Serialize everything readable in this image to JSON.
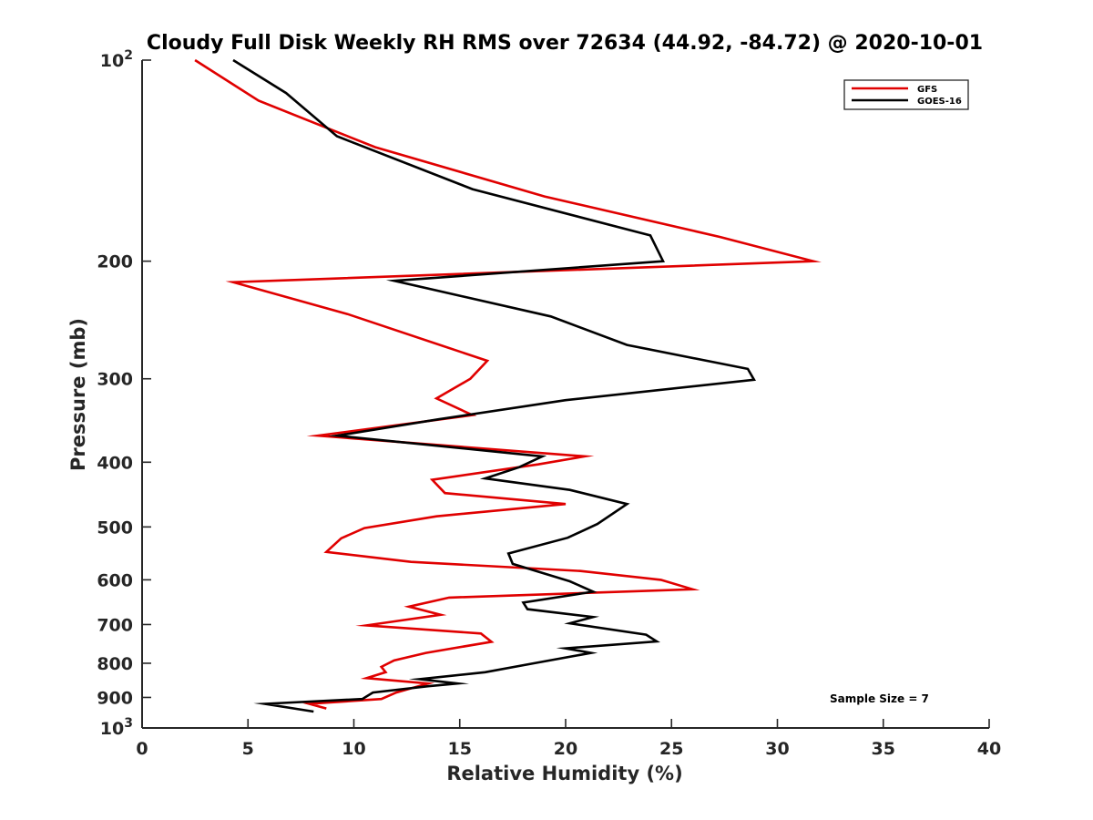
{
  "chart_data": {
    "type": "line",
    "title": "Cloudy Full Disk Weekly RH RMS over 72634 (44.92, -84.72) @ 2020-10-01",
    "xlabel": "Relative Humidity (%)",
    "ylabel": "Pressure (mb)",
    "xlim": [
      0,
      40
    ],
    "ylim": [
      100,
      1000
    ],
    "y_scale": "log",
    "y_reversed": true,
    "x_ticks": [
      "0",
      "5",
      "10",
      "15",
      "20",
      "25",
      "30",
      "35",
      "40"
    ],
    "y_ticks": [
      {
        "value": 100,
        "base": "10",
        "exp": "2",
        "label": ""
      },
      {
        "value": 200,
        "label": "200"
      },
      {
        "value": 300,
        "label": "300"
      },
      {
        "value": 400,
        "label": "400"
      },
      {
        "value": 500,
        "label": "500"
      },
      {
        "value": 600,
        "label": "600"
      },
      {
        "value": 700,
        "label": "700"
      },
      {
        "value": 800,
        "label": "800"
      },
      {
        "value": 900,
        "label": "900"
      },
      {
        "value": 1000,
        "base": "10",
        "exp": "3",
        "label": ""
      }
    ],
    "grid": false,
    "legend_position": "top-right",
    "annotation": "Sample Size = 7",
    "series": [
      {
        "name": "GFS",
        "color": "#e00000",
        "points": [
          {
            "x": 2.5,
            "y": 100
          },
          {
            "x": 5.5,
            "y": 115
          },
          {
            "x": 11.0,
            "y": 135
          },
          {
            "x": 19.0,
            "y": 160
          },
          {
            "x": 27.3,
            "y": 184
          },
          {
            "x": 31.7,
            "y": 200
          },
          {
            "x": 4.3,
            "y": 215
          },
          {
            "x": 9.7,
            "y": 240
          },
          {
            "x": 16.3,
            "y": 282
          },
          {
            "x": 15.5,
            "y": 300
          },
          {
            "x": 13.9,
            "y": 321
          },
          {
            "x": 15.6,
            "y": 340
          },
          {
            "x": 8.3,
            "y": 365
          },
          {
            "x": 20.9,
            "y": 392
          },
          {
            "x": 18.7,
            "y": 403
          },
          {
            "x": 13.7,
            "y": 425
          },
          {
            "x": 14.3,
            "y": 445
          },
          {
            "x": 20.0,
            "y": 462
          },
          {
            "x": 13.9,
            "y": 482
          },
          {
            "x": 10.5,
            "y": 502
          },
          {
            "x": 9.4,
            "y": 520
          },
          {
            "x": 8.7,
            "y": 545
          },
          {
            "x": 12.7,
            "y": 564
          },
          {
            "x": 20.7,
            "y": 582
          },
          {
            "x": 24.5,
            "y": 600
          },
          {
            "x": 26.0,
            "y": 620
          },
          {
            "x": 14.5,
            "y": 638
          },
          {
            "x": 12.6,
            "y": 658
          },
          {
            "x": 14.1,
            "y": 677
          },
          {
            "x": 10.6,
            "y": 702
          },
          {
            "x": 16.0,
            "y": 722
          },
          {
            "x": 16.5,
            "y": 743
          },
          {
            "x": 13.4,
            "y": 772
          },
          {
            "x": 11.9,
            "y": 792
          },
          {
            "x": 11.3,
            "y": 810
          },
          {
            "x": 11.5,
            "y": 825
          },
          {
            "x": 10.6,
            "y": 842
          },
          {
            "x": 13.5,
            "y": 858
          },
          {
            "x": 12.0,
            "y": 885
          },
          {
            "x": 11.3,
            "y": 905
          },
          {
            "x": 7.9,
            "y": 920
          },
          {
            "x": 8.7,
            "y": 935
          }
        ]
      },
      {
        "name": "GOES-16",
        "color": "#000000",
        "points": [
          {
            "x": 4.3,
            "y": 100
          },
          {
            "x": 6.8,
            "y": 112
          },
          {
            "x": 9.2,
            "y": 130
          },
          {
            "x": 15.6,
            "y": 156
          },
          {
            "x": 24.0,
            "y": 183
          },
          {
            "x": 24.6,
            "y": 200
          },
          {
            "x": 11.9,
            "y": 214
          },
          {
            "x": 19.3,
            "y": 242
          },
          {
            "x": 22.9,
            "y": 267
          },
          {
            "x": 28.6,
            "y": 290
          },
          {
            "x": 28.9,
            "y": 301
          },
          {
            "x": 20.0,
            "y": 323
          },
          {
            "x": 14.0,
            "y": 345
          },
          {
            "x": 9.2,
            "y": 365
          },
          {
            "x": 18.9,
            "y": 392
          },
          {
            "x": 17.8,
            "y": 407
          },
          {
            "x": 16.2,
            "y": 423
          },
          {
            "x": 20.2,
            "y": 440
          },
          {
            "x": 22.9,
            "y": 462
          },
          {
            "x": 21.5,
            "y": 495
          },
          {
            "x": 20.1,
            "y": 519
          },
          {
            "x": 17.3,
            "y": 548
          },
          {
            "x": 17.5,
            "y": 568
          },
          {
            "x": 20.2,
            "y": 603
          },
          {
            "x": 21.3,
            "y": 625
          },
          {
            "x": 18.0,
            "y": 649
          },
          {
            "x": 18.2,
            "y": 664
          },
          {
            "x": 21.3,
            "y": 682
          },
          {
            "x": 20.2,
            "y": 697
          },
          {
            "x": 23.8,
            "y": 725
          },
          {
            "x": 24.3,
            "y": 742
          },
          {
            "x": 20.0,
            "y": 760
          },
          {
            "x": 21.2,
            "y": 772
          },
          {
            "x": 18.5,
            "y": 800
          },
          {
            "x": 16.2,
            "y": 825
          },
          {
            "x": 13.1,
            "y": 845
          },
          {
            "x": 14.9,
            "y": 858
          },
          {
            "x": 13.5,
            "y": 866
          },
          {
            "x": 10.9,
            "y": 885
          },
          {
            "x": 10.4,
            "y": 905
          },
          {
            "x": 5.8,
            "y": 920
          },
          {
            "x": 8.1,
            "y": 945
          }
        ]
      }
    ]
  }
}
